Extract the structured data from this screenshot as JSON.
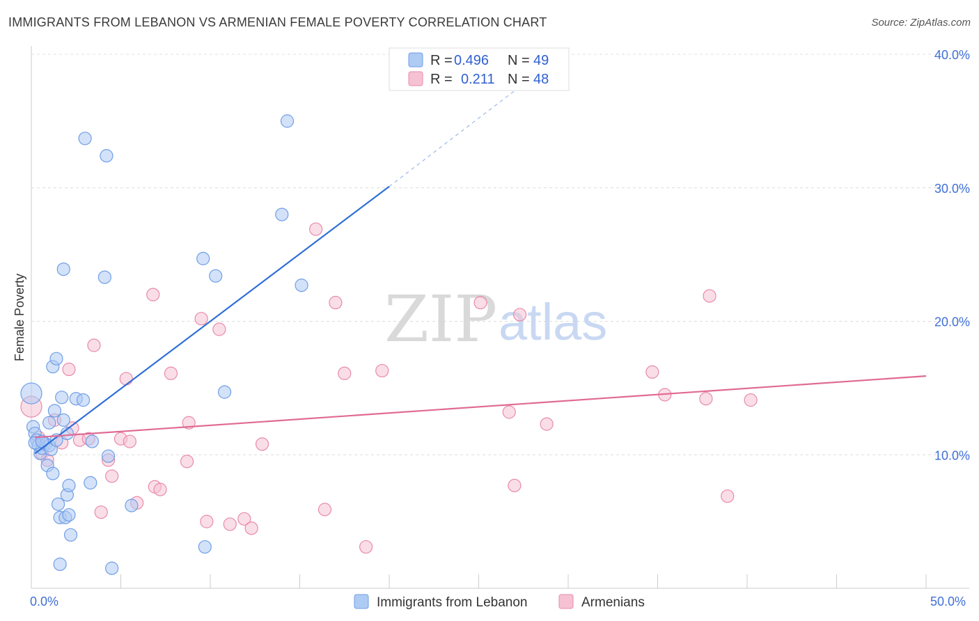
{
  "title": "IMMIGRANTS FROM LEBANON VS ARMENIAN FEMALE POVERTY CORRELATION CHART",
  "source": "Source: ZipAtlas.com",
  "watermark": {
    "zip": "ZIP",
    "atlas": "atlas"
  },
  "colors": {
    "blue": "#6f9ee6",
    "blue_fill": "#aecbf4",
    "blue_line": "#2f6fd6",
    "pink": "#e88aaa",
    "pink_fill": "#f6c2d3",
    "pink_line": "#e06a94"
  },
  "legend": {
    "rows": [
      {
        "r_label": "R = ",
        "r_value": "0.496",
        "n_label": "N = ",
        "n_value": "49"
      },
      {
        "r_label": "R = ",
        "r_value": "0.211",
        "n_label": "N = ",
        "n_value": "48"
      }
    ]
  },
  "chart_data": {
    "type": "scatter",
    "title": "IMMIGRANTS FROM LEBANON VS ARMENIAN FEMALE POVERTY CORRELATION CHART",
    "xlabel": "",
    "ylabel": "Female Poverty",
    "xlim": [
      0,
      50
    ],
    "ylim": [
      0,
      40
    ],
    "x_tick_labels": [
      "0.0%",
      "50.0%"
    ],
    "y_ticks": [
      10,
      20,
      30,
      40
    ],
    "y_tick_labels": [
      "10.0%",
      "20.0%",
      "30.0%",
      "40.0%"
    ],
    "grid": true,
    "legend_position": "top-center",
    "series": [
      {
        "name": "Immigrants from Lebanon",
        "color": "#6f9ee6",
        "r": 0.496,
        "n": 49,
        "trend": {
          "x0": 0.2,
          "y0": 10.1,
          "x1": 20.0,
          "y1": 30.1,
          "dashed_to_x": 28.7,
          "dashed_to_y": 39.0
        },
        "points": [
          {
            "x": 0.0,
            "y": 14.6
          },
          {
            "x": 0.1,
            "y": 12.1
          },
          {
            "x": 0.2,
            "y": 11.6
          },
          {
            "x": 0.3,
            "y": 11.1
          },
          {
            "x": 0.4,
            "y": 10.7
          },
          {
            "x": 0.5,
            "y": 10.1
          },
          {
            "x": 0.6,
            "y": 10.5
          },
          {
            "x": 0.7,
            "y": 10.9
          },
          {
            "x": 0.8,
            "y": 10.8
          },
          {
            "x": 0.9,
            "y": 9.2
          },
          {
            "x": 1.0,
            "y": 10.7
          },
          {
            "x": 1.0,
            "y": 12.4
          },
          {
            "x": 1.1,
            "y": 10.4
          },
          {
            "x": 1.2,
            "y": 8.6
          },
          {
            "x": 1.2,
            "y": 16.6
          },
          {
            "x": 1.3,
            "y": 13.3
          },
          {
            "x": 1.4,
            "y": 11.1
          },
          {
            "x": 1.4,
            "y": 17.2
          },
          {
            "x": 1.5,
            "y": 6.3
          },
          {
            "x": 1.6,
            "y": 5.3
          },
          {
            "x": 1.6,
            "y": 1.8
          },
          {
            "x": 1.7,
            "y": 14.3
          },
          {
            "x": 1.8,
            "y": 23.9
          },
          {
            "x": 1.8,
            "y": 12.6
          },
          {
            "x": 1.9,
            "y": 5.3
          },
          {
            "x": 2.0,
            "y": 11.6
          },
          {
            "x": 2.0,
            "y": 7.0
          },
          {
            "x": 2.1,
            "y": 7.7
          },
          {
            "x": 2.1,
            "y": 5.5
          },
          {
            "x": 2.2,
            "y": 4.0
          },
          {
            "x": 2.5,
            "y": 14.2
          },
          {
            "x": 2.9,
            "y": 14.1
          },
          {
            "x": 3.0,
            "y": 33.7
          },
          {
            "x": 3.3,
            "y": 7.9
          },
          {
            "x": 3.4,
            "y": 11.0
          },
          {
            "x": 4.1,
            "y": 23.3
          },
          {
            "x": 4.2,
            "y": 32.4
          },
          {
            "x": 4.3,
            "y": 9.9
          },
          {
            "x": 4.5,
            "y": 1.5
          },
          {
            "x": 5.6,
            "y": 6.2
          },
          {
            "x": 9.6,
            "y": 24.7
          },
          {
            "x": 9.7,
            "y": 3.1
          },
          {
            "x": 10.3,
            "y": 23.4
          },
          {
            "x": 10.8,
            "y": 14.7
          },
          {
            "x": 14.0,
            "y": 28.0
          },
          {
            "x": 14.3,
            "y": 35.0
          },
          {
            "x": 15.1,
            "y": 22.7
          },
          {
            "x": 0.2,
            "y": 10.9
          },
          {
            "x": 0.6,
            "y": 11.0
          }
        ]
      },
      {
        "name": "Armenians",
        "color": "#e88aaa",
        "r": 0.211,
        "n": 48,
        "trend": {
          "x0": 0.2,
          "y0": 11.3,
          "x1": 50.0,
          "y1": 15.9
        },
        "points": [
          {
            "x": 0.0,
            "y": 13.6
          },
          {
            "x": 0.4,
            "y": 11.3
          },
          {
            "x": 0.6,
            "y": 10.1
          },
          {
            "x": 0.9,
            "y": 9.6
          },
          {
            "x": 1.3,
            "y": 12.6
          },
          {
            "x": 1.7,
            "y": 10.9
          },
          {
            "x": 2.1,
            "y": 16.4
          },
          {
            "x": 2.3,
            "y": 12.0
          },
          {
            "x": 2.7,
            "y": 11.1
          },
          {
            "x": 3.2,
            "y": 11.2
          },
          {
            "x": 3.5,
            "y": 18.2
          },
          {
            "x": 3.9,
            "y": 5.7
          },
          {
            "x": 4.3,
            "y": 9.6
          },
          {
            "x": 4.5,
            "y": 8.4
          },
          {
            "x": 5.0,
            "y": 11.2
          },
          {
            "x": 5.3,
            "y": 15.7
          },
          {
            "x": 5.5,
            "y": 11.0
          },
          {
            "x": 5.9,
            "y": 6.4
          },
          {
            "x": 6.8,
            "y": 22.0
          },
          {
            "x": 6.9,
            "y": 7.6
          },
          {
            "x": 7.2,
            "y": 7.4
          },
          {
            "x": 7.8,
            "y": 16.1
          },
          {
            "x": 8.7,
            "y": 9.5
          },
          {
            "x": 8.8,
            "y": 12.4
          },
          {
            "x": 9.5,
            "y": 20.2
          },
          {
            "x": 9.8,
            "y": 5.0
          },
          {
            "x": 10.5,
            "y": 19.4
          },
          {
            "x": 11.1,
            "y": 4.8
          },
          {
            "x": 11.9,
            "y": 5.2
          },
          {
            "x": 12.3,
            "y": 4.5
          },
          {
            "x": 12.9,
            "y": 10.8
          },
          {
            "x": 15.9,
            "y": 26.9
          },
          {
            "x": 16.4,
            "y": 5.9
          },
          {
            "x": 17.0,
            "y": 21.4
          },
          {
            "x": 17.5,
            "y": 16.1
          },
          {
            "x": 18.7,
            "y": 3.1
          },
          {
            "x": 19.6,
            "y": 16.3
          },
          {
            "x": 25.1,
            "y": 21.4
          },
          {
            "x": 26.7,
            "y": 13.2
          },
          {
            "x": 27.0,
            "y": 7.7
          },
          {
            "x": 27.3,
            "y": 20.5
          },
          {
            "x": 28.8,
            "y": 12.3
          },
          {
            "x": 34.7,
            "y": 16.2
          },
          {
            "x": 35.4,
            "y": 14.5
          },
          {
            "x": 37.7,
            "y": 14.2
          },
          {
            "x": 37.9,
            "y": 21.9
          },
          {
            "x": 38.9,
            "y": 6.9
          },
          {
            "x": 40.2,
            "y": 14.1
          }
        ]
      }
    ]
  },
  "bottom_legend": [
    {
      "label": "Immigrants from Lebanon"
    },
    {
      "label": "Armenians"
    }
  ]
}
